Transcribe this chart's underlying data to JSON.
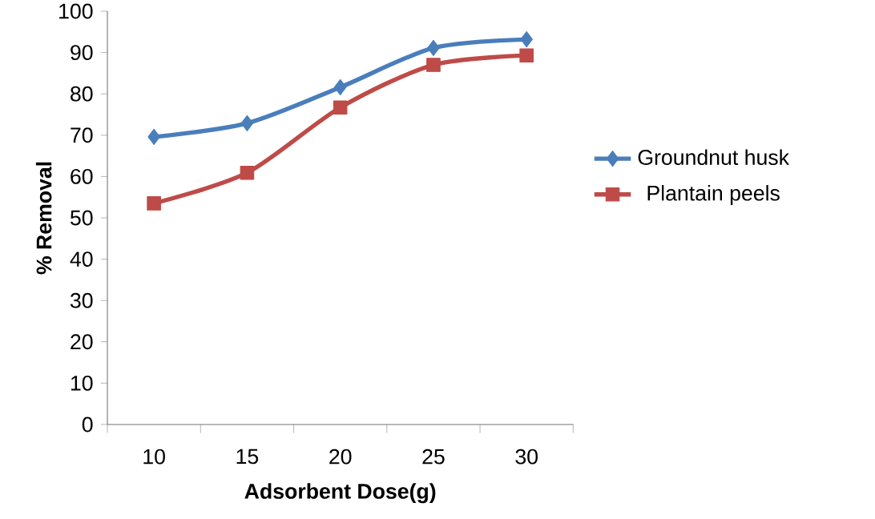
{
  "chart_data": {
    "type": "line",
    "xlabel": "Adsorbent Dose(g)",
    "ylabel": "% Removal",
    "categories": [
      "10",
      "15",
      "20",
      "25",
      "30"
    ],
    "series": [
      {
        "name": "Groundnut husk",
        "color": "#4a7ebb",
        "marker": "diamond",
        "values": [
          69.6,
          72.9,
          81.6,
          91.1,
          93.2
        ]
      },
      {
        "name": "Plantain peels",
        "color": "#be4b48",
        "marker": "square",
        "values": [
          53.5,
          60.9,
          76.7,
          87.0,
          89.3
        ]
      }
    ],
    "ylim": [
      0,
      100
    ],
    "yticks": [
      0,
      10,
      20,
      30,
      40,
      50,
      60,
      70,
      80,
      90,
      100
    ],
    "grid": false,
    "legend": "right"
  }
}
